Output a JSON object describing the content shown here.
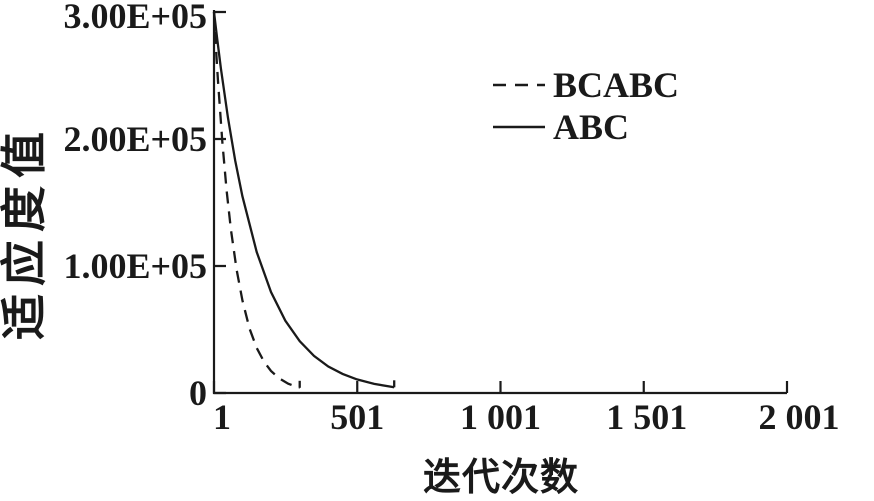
{
  "figure": {
    "background": "#ffffff",
    "ink_color": "#1a1a1a"
  },
  "chart_data": {
    "type": "line",
    "title": "",
    "xlabel": "迭代次数",
    "ylabel": "适应度值",
    "xlim": [
      1,
      2001
    ],
    "ylim": [
      0,
      300000
    ],
    "grid": false,
    "legend_position": "inside-upper-right",
    "x_ticks": [
      {
        "value": 1,
        "label": "1"
      },
      {
        "value": 501,
        "label": "501"
      },
      {
        "value": 1001,
        "label": "1 001"
      },
      {
        "value": 1501,
        "label": "1 501"
      },
      {
        "value": 2001,
        "label": "2 001"
      }
    ],
    "y_ticks": [
      {
        "value": 0,
        "label": "0"
      },
      {
        "value": 100000,
        "label": "1.00E+05"
      },
      {
        "value": 200000,
        "label": "2.00E+05"
      },
      {
        "value": 300000,
        "label": "3.00E+05"
      }
    ],
    "series": [
      {
        "name": "BCABC",
        "line_style": "dashed",
        "x": [
          1,
          8,
          15,
          30,
          45,
          60,
          80,
          100,
          125,
          150,
          175,
          200,
          230,
          260,
          300
        ],
        "y": [
          300000,
          271000,
          245500,
          198000,
          159500,
          128800,
          97200,
          73000,
          50800,
          35500,
          24800,
          17300,
          11300,
          7300,
          4100
        ]
      },
      {
        "name": "ABC",
        "line_style": "solid",
        "x": [
          1,
          12,
          25,
          50,
          75,
          100,
          150,
          200,
          250,
          300,
          350,
          400,
          450,
          500,
          560,
          630
        ],
        "y": [
          300000,
          278800,
          255500,
          216500,
          183000,
          155000,
          111000,
          79500,
          57000,
          40800,
          29200,
          20900,
          15000,
          10700,
          7200,
          4500
        ]
      }
    ]
  }
}
